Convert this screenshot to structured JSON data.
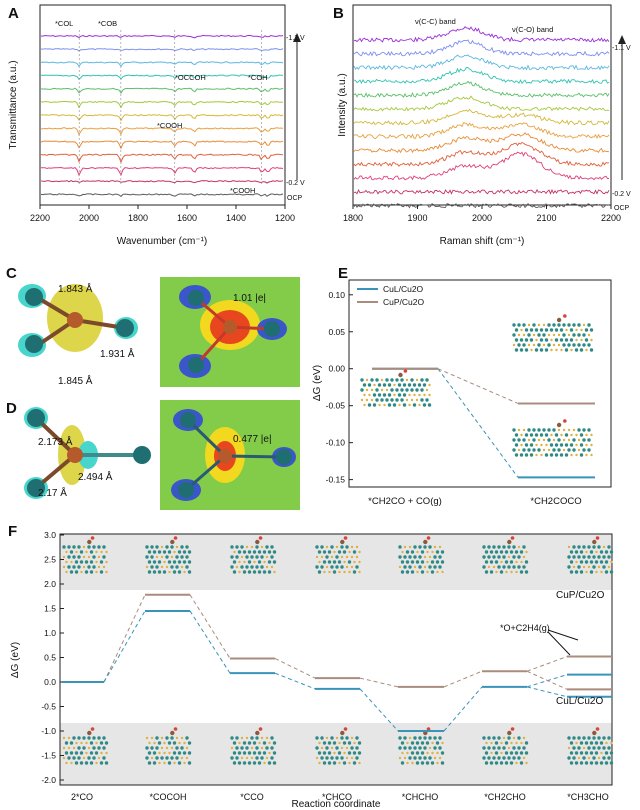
{
  "figure_label": "Multi-panel scientific figure (A–F)",
  "panels": {
    "A": {
      "letter": "A",
      "title": "",
      "xlabel": "Wavenumber (cm⁻¹)",
      "ylabel": "Transmittance (a.u.)",
      "xlim": [
        2200,
        1200
      ],
      "xticks": [
        "2200",
        "2000",
        "1800",
        "1600",
        "1400",
        "1200"
      ],
      "voltage_top": "-1.1 V",
      "voltage_bottom": "-0.2 V",
      "ocp": "OCP",
      "annotations": [
        "*COL",
        "*COB",
        "*OCCOH",
        "*COH",
        "*COOH",
        "*COOH"
      ],
      "peak_positions": [
        2040,
        1870,
        1570,
        1295,
        1650,
        1270
      ],
      "trace_colors": [
        "#9b30d9",
        "#7f8ff0",
        "#5bb8e0",
        "#31c4b0",
        "#5cbf6a",
        "#a6c83c",
        "#d6b83a",
        "#e8a040",
        "#e88c38",
        "#e0603a",
        "#e0407a",
        "#c4306a",
        "#5b5b5b"
      ]
    },
    "B": {
      "letter": "B",
      "xlabel": "Raman shift (cm⁻¹)",
      "ylabel": "Intensity (a.u.)",
      "xlim": [
        1800,
        2200
      ],
      "xticks": [
        "1800",
        "1900",
        "2000",
        "2100",
        "2200"
      ],
      "band1": "ν(C-C) band",
      "band2": "ν(C-O) band",
      "voltage_top": "-1.1 V",
      "voltage_bottom": "-0.2 V",
      "ocp": "OCP"
    },
    "C": {
      "letter": "C",
      "bonds": [
        "1.843 Å",
        "1.931 Å",
        "1.845 Å"
      ],
      "charge": "1.01 |e|"
    },
    "D": {
      "letter": "D",
      "bonds": [
        "2.173 Å",
        "2.494 Å",
        "2.17 Å"
      ],
      "charge": "0.477 |e|"
    },
    "E": {
      "letter": "E",
      "ylabel": "ΔG (eV)",
      "legend": [
        "CuL/Cu2O",
        "CuP/Cu2O"
      ],
      "yticks": [
        "0.10",
        "0.05",
        "0.00",
        "-0.05",
        "-0.10",
        "-0.15"
      ],
      "categories": [
        "*CH2CO + CO(g)",
        "*CH2COCO"
      ]
    },
    "F": {
      "letter": "F",
      "ylabel": "ΔG (eV)",
      "xlabel": "Reaction coordinate",
      "yticks": [
        "3.0",
        "2.5",
        "2.0",
        "1.5",
        "1.0",
        "0.5",
        "0.0",
        "-0.5",
        "-1.0",
        "-1.5",
        "-2.0"
      ],
      "categories": [
        "2*CO",
        "*COCOH",
        "*CCO",
        "*CHCO",
        "*CHCHO",
        "*CH2CHO",
        "*CH3CHO"
      ],
      "label_P": "CuP/Cu2O",
      "label_L": "CuL/Cu2O",
      "label_O": "*O+C2H4(g)"
    }
  },
  "chart_data": [
    {
      "panel": "E",
      "type": "line",
      "title": "",
      "xlabel": "",
      "ylabel": "ΔG (eV)",
      "ylim": [
        -0.16,
        0.12
      ],
      "categories": [
        "*CH2CO + CO(g)",
        "*CH2COCO"
      ],
      "series": [
        {
          "name": "CuL/Cu2O",
          "values": [
            0.0,
            -0.147
          ],
          "color": "#3a93b8"
        },
        {
          "name": "CuP/Cu2O",
          "values": [
            0.0,
            -0.047
          ],
          "color": "#a98c7e"
        }
      ]
    },
    {
      "panel": "F",
      "type": "line",
      "title": "",
      "xlabel": "Reaction coordinate",
      "ylabel": "ΔG (eV)",
      "ylim": [
        -2.2,
        3.0
      ],
      "categories": [
        "2*CO",
        "*COCOH",
        "*CCO",
        "*CHCO",
        "*CHCHO",
        "*CH2CHO",
        "*CH3CHO"
      ],
      "series": [
        {
          "name": "CuP/Cu2O",
          "values": [
            0.0,
            1.78,
            0.48,
            0.08,
            -0.1,
            0.22,
            0.52
          ],
          "color": "#a98c7e"
        },
        {
          "name": "CuL/Cu2O",
          "values": [
            0.0,
            1.45,
            0.18,
            -0.14,
            -1.0,
            -0.1,
            0.15
          ],
          "color": "#3a93b8"
        },
        {
          "name": "*O+C2H4(g) (CuP)",
          "values": [
            null,
            null,
            null,
            null,
            null,
            null,
            -0.15
          ],
          "color": "#a98c7e"
        },
        {
          "name": "*O+C2H4(g) (CuL)",
          "values": [
            null,
            null,
            null,
            null,
            null,
            null,
            -0.3
          ],
          "color": "#3a93b8"
        }
      ]
    }
  ]
}
